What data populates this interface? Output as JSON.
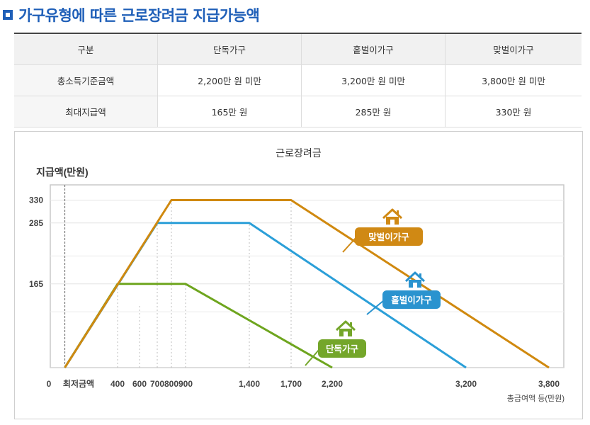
{
  "page_title": "가구유형에 따른 근로장려금 지급가능액",
  "table": {
    "headers": [
      "구분",
      "단독가구",
      "홑벌이가구",
      "맞벌이가구"
    ],
    "rows": [
      [
        "총소득기준금액",
        "2,200만 원 미만",
        "3,200만 원 미만",
        "3,800만 원 미만"
      ],
      [
        "최대지급액",
        "165만 원",
        "285만 원",
        "330만 원"
      ]
    ]
  },
  "chart_data": {
    "type": "line",
    "title": "근로장려금",
    "ylabel": "지급액(만원)",
    "xlabel": "총급여액 등(만원)",
    "x_tick_labels": [
      "0",
      "최저금액",
      "400",
      "600",
      "700",
      "800",
      "900",
      "1,400",
      "1,700",
      "2,200",
      "3,200",
      "3,800"
    ],
    "y_tick_labels": [
      "330",
      "285",
      "165"
    ],
    "xlim": [
      0,
      3900
    ],
    "ylim": [
      0,
      360
    ],
    "series": [
      {
        "name": "단독가구",
        "color": "#6ea51e",
        "badge_color": "#74a62a",
        "points": [
          [
            0,
            0
          ],
          [
            400,
            165
          ],
          [
            900,
            165
          ],
          [
            2200,
            0
          ]
        ]
      },
      {
        "name": "홑벌이가구",
        "color": "#2b9fd8",
        "badge_color": "#2a93cf",
        "points": [
          [
            0,
            0
          ],
          [
            700,
            285
          ],
          [
            1400,
            285
          ],
          [
            3200,
            0
          ]
        ]
      },
      {
        "name": "맞벌이가구",
        "color": "#d0890f",
        "badge_color": "#d08914",
        "points": [
          [
            0,
            0
          ],
          [
            800,
            330
          ],
          [
            1700,
            330
          ],
          [
            3800,
            0
          ]
        ]
      }
    ]
  }
}
